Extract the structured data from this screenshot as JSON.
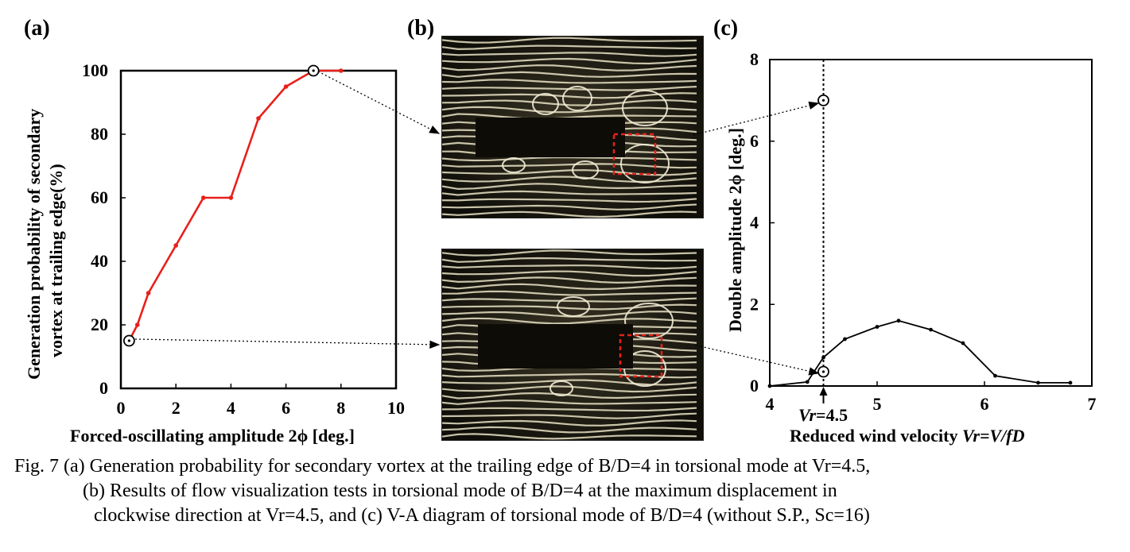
{
  "panels": {
    "a_label": "(a)",
    "b_label": "(b)",
    "c_label": "(c)"
  },
  "chart_data": [
    {
      "id": "a",
      "type": "line",
      "xlabel": "Forced-oscillating amplitude 2ϕ [deg.]",
      "ylabel_line1": "Generation probability of secondary",
      "ylabel_line2": "vortex at trailing edge(%)",
      "xlim": [
        0,
        10
      ],
      "ylim": [
        0,
        100
      ],
      "xticks": [
        0,
        2,
        4,
        6,
        8,
        10
      ],
      "yticks": [
        0,
        20,
        40,
        60,
        80,
        100
      ],
      "series": [
        {
          "color": "#e8201a",
          "x": [
            0.3,
            0.6,
            1.0,
            2.0,
            3.0,
            4.0,
            5.0,
            6.0,
            7.0,
            8.0
          ],
          "y": [
            15,
            20,
            30,
            45,
            60,
            60,
            85,
            95,
            100,
            100
          ]
        }
      ],
      "highlighted_points": [
        [
          0.3,
          15
        ],
        [
          7.0,
          100
        ]
      ]
    },
    {
      "id": "c",
      "type": "line",
      "xlabel_prefix": "Reduced wind velocity ",
      "xlabel_var": "Vr=V/fD",
      "ylabel": "Double amplitude 2ϕ [deg.]",
      "xlim": [
        4,
        7
      ],
      "ylim": [
        0,
        8
      ],
      "xticks": [
        4,
        5,
        6,
        7
      ],
      "yticks": [
        0,
        2,
        4,
        6,
        8
      ],
      "series": [
        {
          "color": "#000000",
          "x": [
            4.0,
            4.35,
            4.5,
            4.7,
            5.0,
            5.2,
            5.5,
            5.8,
            6.1,
            6.5,
            6.8
          ],
          "y": [
            0.0,
            0.1,
            0.7,
            1.15,
            1.45,
            1.6,
            1.38,
            1.05,
            0.25,
            0.08,
            0.08
          ]
        }
      ],
      "vline_x": 4.5,
      "vline_label_var": "Vr",
      "vline_label_value": "=4.5",
      "highlighted_points": [
        [
          4.5,
          7.0
        ],
        [
          4.5,
          0.35
        ]
      ]
    }
  ],
  "caption": {
    "line1": "Fig. 7 (a) Generation probability for secondary vortex at the trailing edge of B/D=4 in torsional mode at Vr=4.5,",
    "line2": "(b) Results of flow visualization tests in torsional mode of B/D=4 at the maximum displacement in",
    "line3": "clockwise direction at Vr=4.5, and (c) V-A diagram of torsional mode of B/D=4 (without S.P., Sc=16)"
  },
  "colors": {
    "red_series": "#e8201a",
    "photo_bg": "#1c1a12",
    "streak": "#e8e2c4",
    "highlight_box": "#e8201a"
  }
}
